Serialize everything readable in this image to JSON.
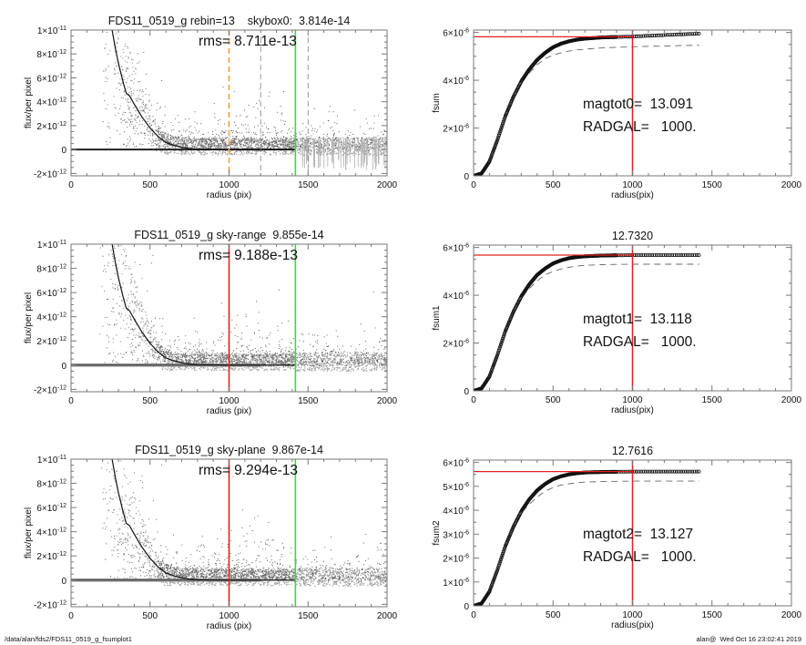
{
  "footer": {
    "path": "/data/alan/fds2/FDS11_0519_g_fsumplot1",
    "stamp": "alan@  Wed Oct 16 23:02:41 2019"
  },
  "colors": {
    "radgal_line": "#e02020",
    "skybox_marker": "#f0a040",
    "sky_radius_line": "#30e030",
    "scatter_light": "#a3a3a3",
    "scatter_dark": "#505050",
    "dashed_guides": "#808080"
  },
  "chart_data": [
    {
      "type": "scatter",
      "title": "FDS11_0519_g rebin=13    skybox0:  3.814e-14",
      "annotation": "rms= 8.711e-13",
      "xlabel": "radius (pix)",
      "ylabel": "flux/per pixel",
      "xlim": [
        0,
        2000
      ],
      "ylim": [
        -2.2e-12,
        1e-11
      ],
      "x_ticks": [
        {
          "v": 0,
          "t": "0"
        },
        {
          "v": 500,
          "t": "500"
        },
        {
          "v": 1000,
          "t": "1000"
        },
        {
          "v": 1500,
          "t": "1500"
        },
        {
          "v": 2000,
          "t": "2000"
        }
      ],
      "y_ticks": [
        {
          "v": 1e-11,
          "t": "1×10",
          "e": "-11"
        },
        {
          "v": 8e-12,
          "t": "8×10",
          "e": "-12"
        },
        {
          "v": 6e-12,
          "t": "6×10",
          "e": "-12"
        },
        {
          "v": 4e-12,
          "t": "4×10",
          "e": "-12"
        },
        {
          "v": 2e-12,
          "t": "2×10",
          "e": "-12"
        },
        {
          "v": 0,
          "t": "0",
          "e": ""
        },
        {
          "v": -2e-12,
          "t": "-2×10",
          "e": "-12"
        }
      ],
      "profile": {
        "x": [
          260,
          280,
          300,
          330,
          350,
          370,
          400,
          450,
          500,
          550,
          600,
          650,
          700,
          750,
          800,
          900,
          1000,
          1200,
          1420
        ],
        "y": [
          1e-11,
          8.5e-12,
          7.2e-12,
          5.6e-12,
          4.7e-12,
          4.5e-12,
          3.8e-12,
          2.7e-12,
          1.8e-12,
          1.1e-12,
          6e-13,
          3.5e-13,
          2e-13,
          8e-14,
          3e-14,
          1e-14,
          0,
          0,
          0
        ]
      },
      "vlines": [
        {
          "x": 1000,
          "color": "#f0a040",
          "style": "dashed"
        },
        {
          "x": 1200,
          "color": "#808080",
          "style": "dashed-thin"
        },
        {
          "x": 1500,
          "color": "#808080",
          "style": "dashed-thin"
        },
        {
          "x": 1420,
          "color": "#30e030",
          "style": "solid"
        }
      ],
      "error_bars_beyond": 1420
    },
    {
      "type": "line",
      "title": "",
      "ylabel": "fsum",
      "xlabel": "radius(pix)",
      "xlim": [
        0,
        2000
      ],
      "ylim": [
        0,
        6.1e-06
      ],
      "x_ticks": [
        {
          "v": 0,
          "t": "0"
        },
        {
          "v": 500,
          "t": "500"
        },
        {
          "v": 1000,
          "t": "1000"
        },
        {
          "v": 1500,
          "t": "1500"
        },
        {
          "v": 2000,
          "t": "2000"
        }
      ],
      "y_ticks": [
        {
          "v": 6e-06,
          "t": "6×10",
          "e": "-6"
        },
        {
          "v": 4e-06,
          "t": "4×10",
          "e": "-6"
        },
        {
          "v": 2e-06,
          "t": "2×10",
          "e": "-6"
        },
        {
          "v": 0,
          "t": "0",
          "e": ""
        }
      ],
      "annotations": [
        "magtot0=  13.091",
        "RADGAL=   1000."
      ],
      "x": [
        0,
        50,
        100,
        150,
        200,
        250,
        300,
        350,
        400,
        450,
        500,
        550,
        600,
        650,
        700,
        800,
        900,
        1000,
        1100,
        1200,
        1300,
        1420
      ],
      "fsum": [
        0,
        1e-07,
        6e-07,
        1.5e-06,
        2.5e-06,
        3.3e-06,
        3.95e-06,
        4.45e-06,
        4.85e-06,
        5.15e-06,
        5.38e-06,
        5.53e-06,
        5.63e-06,
        5.7e-06,
        5.74e-06,
        5.79e-06,
        5.81e-06,
        5.83e-06,
        5.86e-06,
        5.89e-06,
        5.92e-06,
        5.95e-06
      ],
      "dashed": [
        0,
        1e-07,
        6e-07,
        1.5e-06,
        2.5e-06,
        3.3e-06,
        3.9e-06,
        4.3e-06,
        4.65e-06,
        4.9e-06,
        5.05e-06,
        5.15e-06,
        5.22e-06,
        5.27e-06,
        5.3e-06,
        5.35e-06,
        5.38e-06,
        5.4e-06,
        5.42e-06,
        5.43e-06,
        5.45e-06,
        5.46e-06
      ],
      "hline": 5.82e-06,
      "vline": 1000
    },
    {
      "type": "scatter",
      "title": "FDS11_0519_g sky-range  9.855e-14",
      "annotation": "rms= 9.188e-13",
      "xlabel": "radius (pix)",
      "ylabel": "flux/per pixel",
      "xlim": [
        0,
        2000
      ],
      "ylim": [
        -2.2e-12,
        1e-11
      ],
      "x_ticks": [
        {
          "v": 0,
          "t": "0"
        },
        {
          "v": 500,
          "t": "500"
        },
        {
          "v": 1000,
          "t": "1000"
        },
        {
          "v": 1500,
          "t": "1500"
        },
        {
          "v": 2000,
          "t": "2000"
        }
      ],
      "y_ticks": [
        {
          "v": 1e-11,
          "t": "1×10",
          "e": "-11"
        },
        {
          "v": 8e-12,
          "t": "8×10",
          "e": "-12"
        },
        {
          "v": 6e-12,
          "t": "6×10",
          "e": "-12"
        },
        {
          "v": 4e-12,
          "t": "4×10",
          "e": "-12"
        },
        {
          "v": 2e-12,
          "t": "2×10",
          "e": "-12"
        },
        {
          "v": 0,
          "t": "0",
          "e": ""
        },
        {
          "v": -2e-12,
          "t": "-2×10",
          "e": "-12"
        }
      ],
      "profile": {
        "x": [
          260,
          280,
          300,
          330,
          350,
          370,
          400,
          450,
          500,
          550,
          600,
          650,
          700,
          750,
          800,
          900,
          1000,
          1200,
          1420
        ],
        "y": [
          1e-11,
          8.5e-12,
          7.2e-12,
          5.6e-12,
          4.7e-12,
          4.5e-12,
          3.8e-12,
          2.7e-12,
          1.8e-12,
          1.1e-12,
          6e-13,
          3.5e-13,
          2e-13,
          8e-14,
          3e-14,
          1e-14,
          0,
          0,
          0
        ]
      },
      "vlines": [
        {
          "x": 1000,
          "color": "#e02020",
          "style": "solid"
        },
        {
          "x": 1420,
          "color": "#30e030",
          "style": "solid"
        }
      ]
    },
    {
      "type": "line",
      "title": "12.7320",
      "ylabel": "fsum1",
      "xlabel": "radius(pix)",
      "xlim": [
        0,
        2000
      ],
      "ylim": [
        0,
        6.1e-06
      ],
      "x_ticks": [
        {
          "v": 0,
          "t": "0"
        },
        {
          "v": 500,
          "t": "500"
        },
        {
          "v": 1000,
          "t": "1000"
        },
        {
          "v": 1500,
          "t": "1500"
        },
        {
          "v": 2000,
          "t": "2000"
        }
      ],
      "y_ticks": [
        {
          "v": 6e-06,
          "t": "6×10",
          "e": "-6"
        },
        {
          "v": 4e-06,
          "t": "4×10",
          "e": "-6"
        },
        {
          "v": 2e-06,
          "t": "2×10",
          "e": "-6"
        },
        {
          "v": 0,
          "t": "0",
          "e": ""
        }
      ],
      "annotations": [
        "magtot1=  13.118",
        "RADGAL=   1000."
      ],
      "x": [
        0,
        50,
        100,
        150,
        200,
        250,
        300,
        350,
        400,
        450,
        500,
        550,
        600,
        650,
        700,
        800,
        900,
        1000,
        1100,
        1200,
        1300,
        1420
      ],
      "fsum": [
        0,
        1e-07,
        6e-07,
        1.5e-06,
        2.5e-06,
        3.3e-06,
        3.95e-06,
        4.45e-06,
        4.85e-06,
        5.12e-06,
        5.33e-06,
        5.46e-06,
        5.55e-06,
        5.6e-06,
        5.63e-06,
        5.66e-06,
        5.67e-06,
        5.68e-06,
        5.68e-06,
        5.68e-06,
        5.68e-06,
        5.68e-06
      ],
      "dashed": [
        0,
        1e-07,
        6e-07,
        1.5e-06,
        2.5e-06,
        3.3e-06,
        3.9e-06,
        4.28e-06,
        4.6e-06,
        4.85e-06,
        5e-06,
        5.1e-06,
        5.17e-06,
        5.22e-06,
        5.25e-06,
        5.28e-06,
        5.29e-06,
        5.3e-06,
        5.3e-06,
        5.3e-06,
        5.3e-06,
        5.3e-06
      ],
      "hline": 5.68e-06,
      "vline": 1000
    },
    {
      "type": "scatter",
      "title": "FDS11_0519_g sky-plane  9.867e-14",
      "annotation": "rms= 9.294e-13",
      "xlabel": "radius (pix)",
      "ylabel": "flux/per pixel",
      "xlim": [
        0,
        2000
      ],
      "ylim": [
        -2.2e-12,
        1e-11
      ],
      "x_ticks": [
        {
          "v": 0,
          "t": "0"
        },
        {
          "v": 500,
          "t": "500"
        },
        {
          "v": 1000,
          "t": "1000"
        },
        {
          "v": 1500,
          "t": "1500"
        },
        {
          "v": 2000,
          "t": "2000"
        }
      ],
      "y_ticks": [
        {
          "v": 1e-11,
          "t": "1×10",
          "e": "-11"
        },
        {
          "v": 8e-12,
          "t": "8×10",
          "e": "-12"
        },
        {
          "v": 6e-12,
          "t": "6×10",
          "e": "-12"
        },
        {
          "v": 4e-12,
          "t": "4×10",
          "e": "-12"
        },
        {
          "v": 2e-12,
          "t": "2×10",
          "e": "-12"
        },
        {
          "v": 0,
          "t": "0",
          "e": ""
        },
        {
          "v": -2e-12,
          "t": "-2×10",
          "e": "-12"
        }
      ],
      "profile": {
        "x": [
          260,
          280,
          300,
          330,
          350,
          370,
          400,
          450,
          500,
          550,
          600,
          650,
          700,
          750,
          800,
          900,
          1000,
          1200,
          1420
        ],
        "y": [
          1e-11,
          8.5e-12,
          7.2e-12,
          5.6e-12,
          4.7e-12,
          4.5e-12,
          3.8e-12,
          2.7e-12,
          1.8e-12,
          1.1e-12,
          6e-13,
          3.5e-13,
          2e-13,
          8e-14,
          3e-14,
          1e-14,
          0,
          0,
          0
        ]
      },
      "vlines": [
        {
          "x": 1000,
          "color": "#e02020",
          "style": "solid"
        },
        {
          "x": 1420,
          "color": "#30e030",
          "style": "solid"
        }
      ]
    },
    {
      "type": "line",
      "title": "12.7616",
      "ylabel": "fsum2",
      "xlabel": "radius(pix)",
      "xlim": [
        0,
        2000
      ],
      "ylim": [
        0,
        6.1e-06
      ],
      "x_ticks": [
        {
          "v": 0,
          "t": "0"
        },
        {
          "v": 500,
          "t": "500"
        },
        {
          "v": 1000,
          "t": "1000"
        },
        {
          "v": 1500,
          "t": "1500"
        },
        {
          "v": 2000,
          "t": "2000"
        }
      ],
      "y_ticks": [
        {
          "v": 6e-06,
          "t": "6×10",
          "e": "-6"
        },
        {
          "v": 5e-06,
          "t": "5×10",
          "e": "-6"
        },
        {
          "v": 4e-06,
          "t": "4×10",
          "e": "-6"
        },
        {
          "v": 3e-06,
          "t": "3×10",
          "e": "-6"
        },
        {
          "v": 2e-06,
          "t": "2×10",
          "e": "-6"
        },
        {
          "v": 1e-06,
          "t": "1×10",
          "e": "-6"
        },
        {
          "v": 0,
          "t": "0",
          "e": ""
        }
      ],
      "annotations": [
        "magtot2=  13.127",
        "RADGAL=   1000."
      ],
      "x": [
        0,
        50,
        100,
        150,
        200,
        250,
        300,
        350,
        400,
        450,
        500,
        550,
        600,
        650,
        700,
        800,
        900,
        1000,
        1100,
        1200,
        1300,
        1420
      ],
      "fsum": [
        0,
        1e-07,
        6e-07,
        1.5e-06,
        2.5e-06,
        3.3e-06,
        3.95e-06,
        4.45e-06,
        4.83e-06,
        5.1e-06,
        5.3e-06,
        5.42e-06,
        5.5e-06,
        5.55e-06,
        5.58e-06,
        5.6e-06,
        5.61e-06,
        5.62e-06,
        5.62e-06,
        5.62e-06,
        5.62e-06,
        5.62e-06
      ],
      "dashed": [
        0,
        1e-07,
        6e-07,
        1.5e-06,
        2.5e-06,
        3.3e-06,
        3.9e-06,
        4.25e-06,
        4.55e-06,
        4.8e-06,
        4.95e-06,
        5.05e-06,
        5.11e-06,
        5.15e-06,
        5.18e-06,
        5.2e-06,
        5.21e-06,
        5.22e-06,
        5.22e-06,
        5.22e-06,
        5.22e-06,
        5.22e-06
      ],
      "hline": 5.62e-06,
      "vline": 1000
    }
  ]
}
